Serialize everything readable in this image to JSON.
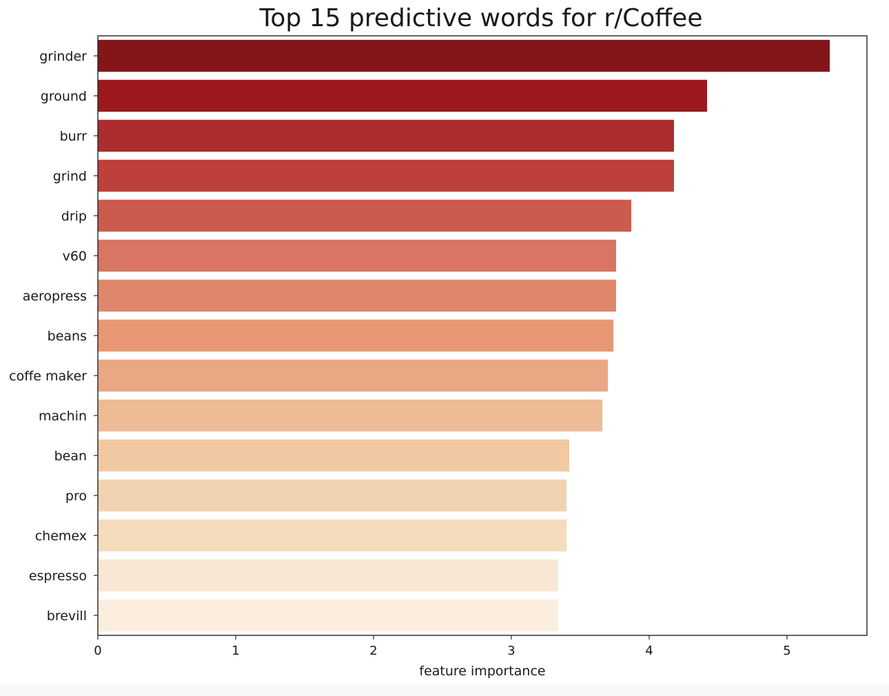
{
  "chart_data": {
    "type": "bar",
    "orientation": "horizontal",
    "title": "Top 15 predictive words for r/Coffee",
    "xlabel": "feature importance",
    "ylabel": "",
    "xlim": [
      0,
      5.58
    ],
    "x_ticks": [
      0,
      1,
      2,
      3,
      4,
      5
    ],
    "grid": false,
    "legend": "none",
    "categories": [
      "grinder",
      "ground",
      "burr",
      "grind",
      "drip",
      "v60",
      "aeropress",
      "beans",
      "coffe maker",
      "machin",
      "bean",
      "pro",
      "chemex",
      "espresso",
      "brevill"
    ],
    "values": [
      5.31,
      4.42,
      4.18,
      4.18,
      3.87,
      3.76,
      3.76,
      3.74,
      3.7,
      3.66,
      3.42,
      3.4,
      3.4,
      3.34,
      3.34
    ],
    "colors": [
      "#841619",
      "#9b191d",
      "#ac2d2d",
      "#bd403a",
      "#cb5b4c",
      "#d87563",
      "#df876c",
      "#e79774",
      "#eaa784",
      "#edbc97",
      "#f0c9a2",
      "#f1d3b1",
      "#f5dcbc",
      "#f8e7d4",
      "#fbeedf"
    ]
  }
}
